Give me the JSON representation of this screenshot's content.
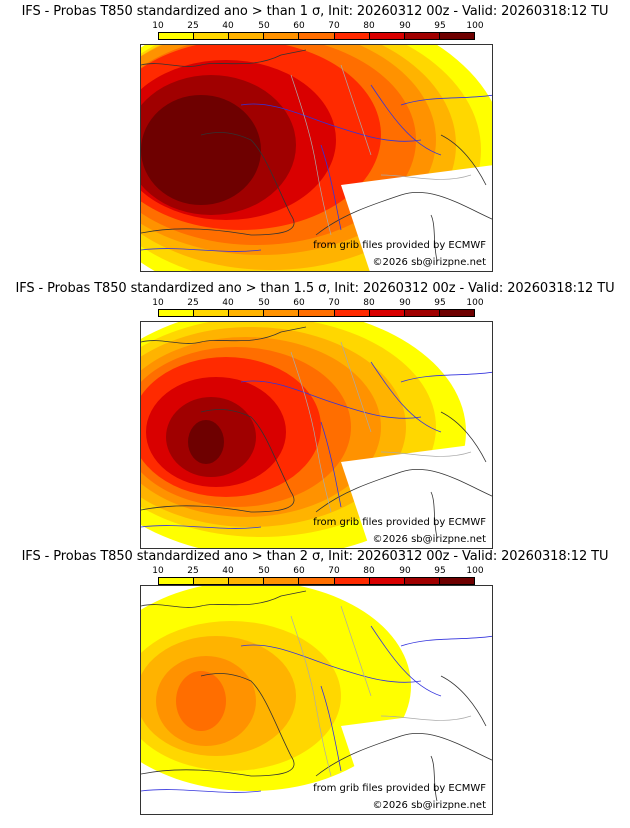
{
  "panels": [
    {
      "title": "IFS - Probas T850  standardized ano > than 1 σ, Init: 20260312 00z - Valid: 20260318:12 TU",
      "threshold": "1 σ",
      "credit_source": "from grib files provided by ECMWF",
      "credit_copyright": "©2026 sb@irizpne.net"
    },
    {
      "title": "IFS - Probas T850  standardized ano > than 1.5 σ, Init: 20260312 00z - Valid: 20260318:12 TU",
      "threshold": "1.5 σ",
      "credit_source": "from grib files provided by ECMWF",
      "credit_copyright": "©2026 sb@irizpne.net"
    },
    {
      "title": "IFS - Probas T850  standardized ano > than 2 σ, Init: 20260312 00z - Valid: 20260318:12 TU",
      "threshold": "2 σ",
      "credit_source": "from grib files provided by ECMWF",
      "credit_copyright": "©2026 sb@irizpne.net"
    }
  ],
  "colorbar": {
    "ticks": [
      "10",
      "25",
      "40",
      "50",
      "60",
      "70",
      "80",
      "90",
      "95",
      "100"
    ],
    "colors": [
      "#ffff00",
      "#ffd700",
      "#ffb300",
      "#ff9200",
      "#ff6e00",
      "#ff2a00",
      "#d90000",
      "#a00000",
      "#6e0000"
    ]
  },
  "init": "20260312 00z",
  "valid": "20260318:12 TU",
  "model": "IFS",
  "variable": "Probas T850 standardized ano",
  "colors": {
    "coastline": "#333333",
    "rivers": "#3333dd",
    "borders": "#aaaaaa"
  }
}
